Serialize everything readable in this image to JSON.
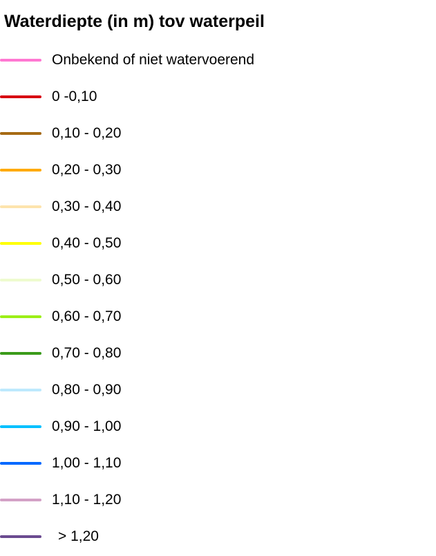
{
  "legend": {
    "title": "Waterdiepte (in m) tov waterpeil",
    "items": [
      {
        "label": "Onbekend of niet watervoerend",
        "color": "#ff78d2"
      },
      {
        "label": "0 -0,10",
        "color": "#d7000f"
      },
      {
        "label": "0,10 - 0,20",
        "color": "#a66a14"
      },
      {
        "label": "0,20 - 0,30",
        "color": "#ffaa00"
      },
      {
        "label": "0,30 - 0,40",
        "color": "#fde4ad"
      },
      {
        "label": "0,40 - 0,50",
        "color": "#ffff00"
      },
      {
        "label": "0,50 - 0,60",
        "color": "#eefbcf"
      },
      {
        "label": "0,60 - 0,70",
        "color": "#9cef17"
      },
      {
        "label": "0,70 - 0,80",
        "color": "#3b9b1a"
      },
      {
        "label": "0,80 - 0,90",
        "color": "#bde9fd"
      },
      {
        "label": "0,90 - 1,00",
        "color": "#00c0ff"
      },
      {
        "label": "1,00 - 1,10",
        "color": "#0068ff"
      },
      {
        "label": "1,10 - 1,20",
        "color": "#d3a1c6"
      },
      {
        "label": "> 1,20",
        "color": "#6b4b90"
      }
    ]
  }
}
